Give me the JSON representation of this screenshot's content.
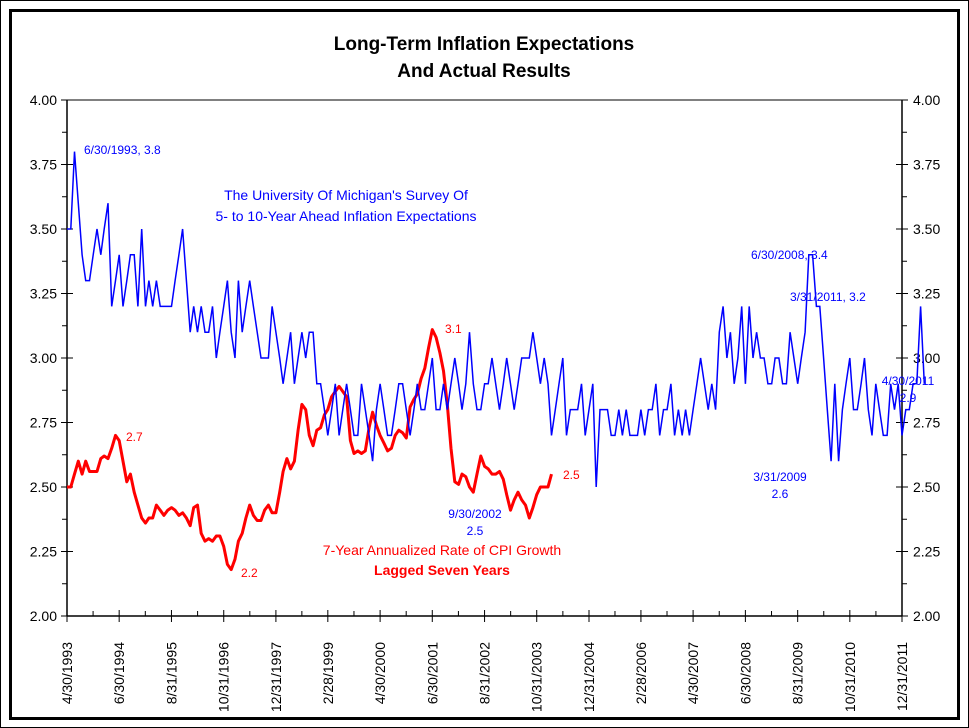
{
  "chart_data": {
    "type": "line",
    "title": "Long-Term Inflation Expectations",
    "subtitle": "And Actual Results",
    "xlabel": "",
    "ylabel": "",
    "ylim": [
      2.0,
      4.0
    ],
    "y_ticks": [
      "4.00",
      "3.75",
      "3.50",
      "3.25",
      "3.00",
      "2.75",
      "2.50",
      "2.25",
      "2.00"
    ],
    "y_ticks_right": [
      "4.00",
      "3.75",
      "3.50",
      "3.25",
      "3.00",
      "2.75",
      "2.50",
      "2.25",
      "2.00"
    ],
    "x_range": [
      "1993-04-30",
      "2011-12-31"
    ],
    "x_ticks": [
      "4/30/1993",
      "6/30/1994",
      "8/31/1995",
      "10/31/1996",
      "12/31/1997",
      "2/28/1999",
      "4/30/2000",
      "6/30/2001",
      "8/31/2002",
      "10/31/2003",
      "12/31/2004",
      "2/28/2006",
      "4/30/2007",
      "6/30/2008",
      "8/31/2009",
      "10/31/2010",
      "12/31/2011"
    ],
    "grid": false,
    "series": [
      {
        "name": "The University Of Michigan's Survey Of 5- to 10-Year Ahead Inflation Expectations",
        "color": "#0000ff",
        "start": "1993-04",
        "frequency": "monthly",
        "values": [
          3.5,
          3.5,
          3.8,
          3.6,
          3.4,
          3.3,
          3.3,
          3.4,
          3.5,
          3.4,
          3.5,
          3.6,
          3.2,
          3.3,
          3.4,
          3.2,
          3.3,
          3.4,
          3.4,
          3.2,
          3.5,
          3.2,
          3.3,
          3.2,
          3.3,
          3.2,
          3.2,
          3.2,
          3.2,
          3.3,
          3.4,
          3.5,
          3.3,
          3.1,
          3.2,
          3.1,
          3.2,
          3.1,
          3.1,
          3.2,
          3.0,
          3.1,
          3.2,
          3.3,
          3.1,
          3.0,
          3.3,
          3.1,
          3.2,
          3.3,
          3.2,
          3.1,
          3.0,
          3.0,
          3.0,
          3.2,
          3.1,
          3.0,
          2.9,
          3.0,
          3.1,
          2.9,
          3.0,
          3.1,
          3.0,
          3.1,
          3.1,
          2.9,
          2.9,
          2.8,
          2.7,
          2.8,
          2.9,
          2.7,
          2.8,
          2.9,
          2.8,
          2.7,
          2.7,
          2.9,
          2.8,
          2.7,
          2.6,
          2.8,
          2.9,
          2.8,
          2.7,
          2.7,
          2.8,
          2.9,
          2.9,
          2.8,
          2.7,
          2.8,
          2.9,
          2.8,
          2.8,
          2.9,
          3.0,
          2.8,
          2.8,
          2.9,
          2.8,
          2.9,
          3.0,
          2.9,
          2.8,
          2.9,
          3.1,
          2.9,
          2.8,
          2.8,
          2.9,
          2.9,
          3.0,
          2.9,
          2.8,
          2.9,
          3.0,
          2.9,
          2.8,
          2.9,
          3.0,
          3.0,
          3.0,
          3.1,
          3.0,
          2.9,
          3.0,
          2.9,
          2.7,
          2.8,
          2.9,
          3.0,
          2.7,
          2.8,
          2.8,
          2.8,
          2.9,
          2.7,
          2.8,
          2.9,
          2.5,
          2.8,
          2.8,
          2.8,
          2.7,
          2.7,
          2.8,
          2.7,
          2.8,
          2.7,
          2.7,
          2.7,
          2.8,
          2.7,
          2.8,
          2.8,
          2.9,
          2.7,
          2.8,
          2.8,
          2.9,
          2.7,
          2.8,
          2.7,
          2.8,
          2.7,
          2.8,
          2.9,
          3.0,
          2.9,
          2.8,
          2.9,
          2.8,
          3.1,
          3.2,
          3.0,
          3.1,
          2.9,
          3.0,
          3.2,
          2.9,
          3.2,
          3.0,
          3.1,
          3.0,
          3.0,
          2.9,
          2.9,
          3.0,
          3.0,
          2.9,
          2.9,
          3.1,
          3.0,
          2.9,
          3.0,
          3.1,
          3.4,
          3.4,
          3.2,
          3.2,
          3.0,
          2.8,
          2.6,
          2.9,
          2.6,
          2.8,
          2.9,
          3.0,
          2.8,
          2.8,
          2.9,
          3.0,
          2.8,
          2.7,
          2.9,
          2.8,
          2.7,
          2.7,
          2.9,
          2.8,
          2.9,
          2.7,
          2.8,
          2.8,
          2.9,
          2.9,
          3.2,
          2.9
        ]
      },
      {
        "name": "7-Year Annualized Rate of CPI Growth Lagged Seven Years",
        "color": "#ff0000",
        "start": "1993-04",
        "frequency": "monthly",
        "values": [
          2.5,
          2.5,
          2.55,
          2.6,
          2.55,
          2.6,
          2.56,
          2.56,
          2.56,
          2.61,
          2.62,
          2.61,
          2.65,
          2.7,
          2.68,
          2.6,
          2.52,
          2.55,
          2.48,
          2.43,
          2.38,
          2.36,
          2.38,
          2.38,
          2.43,
          2.41,
          2.39,
          2.41,
          2.42,
          2.41,
          2.39,
          2.4,
          2.38,
          2.35,
          2.42,
          2.43,
          2.32,
          2.29,
          2.3,
          2.29,
          2.31,
          2.31,
          2.27,
          2.2,
          2.18,
          2.22,
          2.29,
          2.32,
          2.38,
          2.43,
          2.39,
          2.37,
          2.37,
          2.41,
          2.43,
          2.4,
          2.4,
          2.48,
          2.56,
          2.61,
          2.57,
          2.6,
          2.72,
          2.82,
          2.8,
          2.7,
          2.66,
          2.72,
          2.73,
          2.78,
          2.8,
          2.85,
          2.87,
          2.89,
          2.87,
          2.85,
          2.68,
          2.63,
          2.64,
          2.63,
          2.64,
          2.73,
          2.79,
          2.74,
          2.7,
          2.67,
          2.64,
          2.65,
          2.7,
          2.72,
          2.71,
          2.69,
          2.81,
          2.84,
          2.86,
          2.92,
          2.96,
          3.04,
          3.11,
          3.08,
          3.02,
          2.95,
          2.82,
          2.65,
          2.52,
          2.51,
          2.55,
          2.54,
          2.5,
          2.48,
          2.55,
          2.62,
          2.58,
          2.57,
          2.55,
          2.55,
          2.56,
          2.53,
          2.47,
          2.41,
          2.45,
          2.48,
          2.45,
          2.43,
          2.38,
          2.42,
          2.47,
          2.5,
          2.5,
          2.5,
          2.55
        ]
      }
    ],
    "annotations": [
      {
        "text": "6/30/1993, 3.8",
        "series": 0,
        "color": "#0000ff"
      },
      {
        "text": "The University Of Michigan's Survey Of",
        "series": 0,
        "color": "#0000ff"
      },
      {
        "text": "5- to 10-Year Ahead Inflation Expectations",
        "series": 0,
        "color": "#0000ff"
      },
      {
        "text": "6/30/2008, 3.4",
        "series": 0,
        "color": "#0000ff"
      },
      {
        "text": "3/31/2011, 3.2",
        "series": 0,
        "color": "#0000ff"
      },
      {
        "text": "4/30/2011",
        "series": 0,
        "color": "#0000ff"
      },
      {
        "text": "2.9",
        "series": 0,
        "color": "#0000ff"
      },
      {
        "text": "3/31/2009",
        "series": 0,
        "color": "#0000ff"
      },
      {
        "text": "2.6",
        "series": 0,
        "color": "#0000ff"
      },
      {
        "text": "9/30/2002",
        "series": 0,
        "color": "#0000ff"
      },
      {
        "text": "2.5",
        "series": 0,
        "color": "#0000ff"
      },
      {
        "text": "2.7",
        "series": 1,
        "color": "#ff0000"
      },
      {
        "text": "2.2",
        "series": 1,
        "color": "#ff0000"
      },
      {
        "text": "3.1",
        "series": 1,
        "color": "#ff0000"
      },
      {
        "text": "2.5",
        "series": 1,
        "color": "#ff0000"
      },
      {
        "text": "7-Year Annualized Rate of CPI Growth",
        "series": 1,
        "color": "#ff0000"
      },
      {
        "text": "Lagged Seven Years",
        "series": 1,
        "color": "#ff0000"
      }
    ]
  }
}
